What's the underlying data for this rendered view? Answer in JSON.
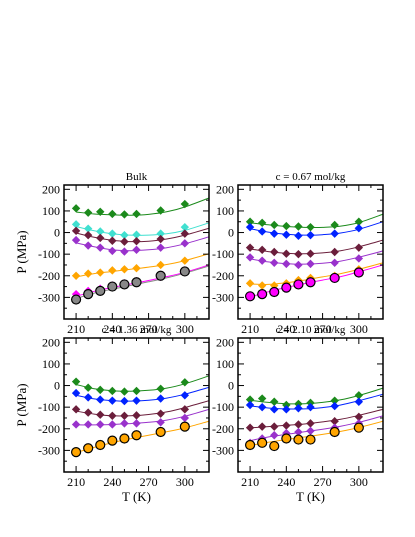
{
  "chart_data": [
    {
      "type": "line",
      "title": "Bulk",
      "xlabel": "",
      "ylabel": "P (MPa)",
      "xlim": [
        200,
        320
      ],
      "ylim": [
        -400,
        220
      ],
      "xticks": [
        210,
        240,
        270,
        300
      ],
      "yticks": [
        -300,
        -200,
        -100,
        0,
        100,
        200
      ],
      "series": [
        {
          "color": "#1b8a1b",
          "marker": "diamond",
          "x": [
            210,
            220,
            230,
            240,
            250,
            260,
            280,
            300
          ],
          "y": [
            112,
            92,
            96,
            86,
            84,
            86,
            102,
            132
          ],
          "curve_x": [
            210,
            225,
            240,
            255,
            270,
            285,
            300,
            320
          ],
          "curve_y": [
            95,
            86,
            82,
            80,
            84,
            96,
            118,
            160
          ]
        },
        {
          "color": "#40e0d0",
          "marker": "diamond",
          "x": [
            210,
            220,
            230,
            240,
            250,
            260,
            280,
            300
          ],
          "y": [
            38,
            18,
            5,
            -5,
            -12,
            -10,
            -5,
            25
          ],
          "curve_x": [
            210,
            225,
            240,
            255,
            270,
            285,
            300,
            320
          ],
          "curve_y": [
            28,
            8,
            -6,
            -12,
            -12,
            -6,
            10,
            45
          ]
        },
        {
          "color": "#6b1e3b",
          "marker": "diamond",
          "x": [
            210,
            220,
            230,
            240,
            250,
            260,
            280,
            300
          ],
          "y": [
            8,
            -12,
            -25,
            -38,
            -42,
            -40,
            -30,
            -5
          ],
          "curve_x": [
            210,
            225,
            240,
            255,
            270,
            285,
            300,
            320
          ],
          "curve_y": [
            -2,
            -22,
            -36,
            -42,
            -40,
            -30,
            -12,
            20
          ]
        },
        {
          "color": "#9932cc",
          "marker": "diamond",
          "x": [
            210,
            220,
            230,
            240,
            250,
            260,
            280,
            300
          ],
          "y": [
            -35,
            -60,
            -70,
            -85,
            -88,
            -80,
            -70,
            -50
          ],
          "curve_x": [
            210,
            225,
            240,
            255,
            270,
            285,
            300,
            320
          ],
          "curve_y": [
            -48,
            -66,
            -80,
            -84,
            -80,
            -70,
            -52,
            -20
          ]
        },
        {
          "color": "#ffa500",
          "marker": "diamond",
          "x": [
            210,
            220,
            230,
            240,
            250,
            260,
            280,
            300
          ],
          "y": [
            -200,
            -190,
            -185,
            -175,
            -170,
            -165,
            -150,
            -130
          ],
          "curve_x": [
            210,
            225,
            240,
            255,
            270,
            285,
            300,
            320
          ],
          "curve_y": [
            -205,
            -190,
            -180,
            -170,
            -160,
            -148,
            -130,
            -98
          ]
        },
        {
          "color": "#ff00ff",
          "marker": "diamond",
          "x": [
            210,
            220,
            230,
            240,
            250,
            260,
            280,
            300
          ],
          "y": [
            -285,
            -270,
            -260,
            -245,
            -235,
            -225,
            -205,
            -175
          ],
          "curve_x": [
            210,
            225,
            240,
            255,
            270,
            285,
            300,
            320
          ],
          "curve_y": [
            -295,
            -272,
            -254,
            -238,
            -222,
            -204,
            -184,
            -150
          ]
        },
        {
          "color": "#888888",
          "marker": "circle",
          "x": [
            210,
            220,
            230,
            240,
            250,
            260,
            280,
            300
          ],
          "y": [
            -310,
            -285,
            -270,
            -250,
            -240,
            -230,
            -200,
            -180
          ],
          "curve_x": [
            210,
            225,
            240,
            255,
            270,
            285,
            300,
            320
          ],
          "curve_y": [
            -305,
            -280,
            -262,
            -245,
            -228,
            -210,
            -188,
            -155
          ]
        }
      ]
    },
    {
      "type": "line",
      "title": "c = 0.67 mol/kg",
      "xlabel": "",
      "ylabel": "",
      "xlim": [
        200,
        320
      ],
      "ylim": [
        -400,
        220
      ],
      "xticks": [
        210,
        240,
        270,
        300
      ],
      "yticks": [
        -300,
        -200,
        -100,
        0,
        100,
        200
      ],
      "series": [
        {
          "color": "#1b8a1b",
          "marker": "diamond",
          "x": [
            210,
            220,
            230,
            240,
            250,
            260,
            280,
            300
          ],
          "y": [
            50,
            45,
            35,
            30,
            28,
            25,
            35,
            50
          ],
          "curve_x": [
            210,
            225,
            240,
            255,
            270,
            285,
            300,
            320
          ],
          "curve_y": [
            45,
            36,
            28,
            24,
            24,
            30,
            46,
            85
          ]
        },
        {
          "color": "#0022ff",
          "marker": "diamond",
          "x": [
            210,
            220,
            230,
            240,
            250,
            260,
            280,
            300
          ],
          "y": [
            25,
            5,
            -5,
            -10,
            -15,
            -12,
            -5,
            20
          ],
          "curve_x": [
            210,
            225,
            240,
            255,
            270,
            285,
            300,
            320
          ],
          "curve_y": [
            18,
            2,
            -8,
            -12,
            -10,
            -2,
            15,
            50
          ]
        },
        {
          "color": "#6b1e3b",
          "marker": "diamond",
          "x": [
            210,
            220,
            230,
            240,
            250,
            260,
            280,
            300
          ],
          "y": [
            -70,
            -80,
            -90,
            -98,
            -100,
            -98,
            -90,
            -70
          ],
          "curve_x": [
            210,
            225,
            240,
            255,
            270,
            285,
            300,
            320
          ],
          "curve_y": [
            -76,
            -88,
            -96,
            -98,
            -94,
            -84,
            -66,
            -35
          ]
        },
        {
          "color": "#9932cc",
          "marker": "diamond",
          "x": [
            210,
            220,
            230,
            240,
            250,
            260,
            280,
            300
          ],
          "y": [
            -115,
            -130,
            -140,
            -145,
            -150,
            -145,
            -140,
            -120
          ],
          "curve_x": [
            210,
            225,
            240,
            255,
            270,
            285,
            300,
            320
          ],
          "curve_y": [
            -122,
            -136,
            -144,
            -146,
            -142,
            -132,
            -114,
            -85
          ]
        },
        {
          "color": "#ffa500",
          "marker": "diamond",
          "x": [
            210,
            220,
            230,
            240,
            250,
            260,
            280,
            300
          ],
          "y": [
            -235,
            -245,
            -245,
            -235,
            -220,
            -210,
            -200,
            -170
          ],
          "curve_x": [
            210,
            225,
            240,
            255,
            270,
            285,
            300,
            320
          ],
          "curve_y": [
            -238,
            -240,
            -232,
            -220,
            -205,
            -190,
            -170,
            -140
          ]
        },
        {
          "color": "#ff00ff",
          "marker": "circle",
          "x": [
            210,
            220,
            230,
            240,
            250,
            260,
            280,
            300
          ],
          "y": [
            -295,
            -285,
            -275,
            -255,
            -240,
            -230,
            -210,
            -185
          ],
          "curve_x": [
            210,
            225,
            240,
            255,
            270,
            285,
            300,
            320
          ],
          "curve_y": [
            -298,
            -274,
            -254,
            -236,
            -220,
            -204,
            -182,
            -150
          ]
        }
      ]
    },
    {
      "type": "line",
      "title": "c = 1.36 mol/kg",
      "xlabel": "T (K)",
      "ylabel": "P (MPa)",
      "xlim": [
        200,
        320
      ],
      "ylim": [
        -400,
        220
      ],
      "xticks": [
        210,
        240,
        270,
        300
      ],
      "yticks": [
        -300,
        -200,
        -100,
        0,
        100,
        200
      ],
      "series": [
        {
          "color": "#1b8a1b",
          "marker": "diamond",
          "x": [
            210,
            220,
            230,
            240,
            250,
            260,
            280,
            300
          ],
          "y": [
            18,
            -10,
            -20,
            -25,
            -28,
            -25,
            -15,
            15
          ],
          "curve_x": [
            210,
            225,
            240,
            255,
            270,
            285,
            300,
            320
          ],
          "curve_y": [
            5,
            -15,
            -24,
            -26,
            -22,
            -12,
            8,
            45
          ]
        },
        {
          "color": "#0022ff",
          "marker": "diamond",
          "x": [
            210,
            220,
            230,
            240,
            250,
            260,
            280,
            300
          ],
          "y": [
            -35,
            -55,
            -65,
            -70,
            -72,
            -70,
            -60,
            -45
          ],
          "curve_x": [
            210,
            225,
            240,
            255,
            270,
            285,
            300,
            320
          ],
          "curve_y": [
            -45,
            -62,
            -70,
            -72,
            -68,
            -58,
            -40,
            -8
          ]
        },
        {
          "color": "#6b1e3b",
          "marker": "diamond",
          "x": [
            210,
            220,
            230,
            240,
            250,
            260,
            280,
            300
          ],
          "y": [
            -110,
            -125,
            -135,
            -140,
            -140,
            -138,
            -130,
            -110
          ],
          "curve_x": [
            210,
            225,
            240,
            255,
            270,
            285,
            300,
            320
          ],
          "curve_y": [
            -118,
            -132,
            -140,
            -140,
            -134,
            -122,
            -102,
            -70
          ]
        },
        {
          "color": "#9932cc",
          "marker": "diamond",
          "x": [
            210,
            220,
            230,
            240,
            250,
            260,
            280,
            300
          ],
          "y": [
            -180,
            -180,
            -180,
            -180,
            -175,
            -175,
            -170,
            -150
          ],
          "curve_x": [
            210,
            225,
            240,
            255,
            270,
            285,
            300,
            320
          ],
          "curve_y": [
            -182,
            -182,
            -180,
            -176,
            -170,
            -160,
            -142,
            -110
          ]
        },
        {
          "color": "#ffa500",
          "marker": "circle",
          "x": [
            210,
            220,
            230,
            240,
            250,
            260,
            280,
            300
          ],
          "y": [
            -308,
            -290,
            -275,
            -255,
            -245,
            -230,
            -215,
            -190
          ],
          "curve_x": [
            210,
            225,
            240,
            255,
            270,
            285,
            300,
            320
          ],
          "curve_y": [
            -310,
            -286,
            -264,
            -246,
            -230,
            -214,
            -196,
            -165
          ]
        }
      ]
    },
    {
      "type": "line",
      "title": "c = 2.10 mol/kg",
      "xlabel": "T (K)",
      "ylabel": "",
      "xlim": [
        200,
        320
      ],
      "ylim": [
        -400,
        220
      ],
      "xticks": [
        210,
        240,
        270,
        300
      ],
      "yticks": [
        -300,
        -200,
        -100,
        0,
        100,
        200
      ],
      "series": [
        {
          "color": "#1b8a1b",
          "marker": "diamond",
          "x": [
            210,
            220,
            230,
            240,
            250,
            260,
            280,
            300
          ],
          "y": [
            -65,
            -60,
            -75,
            -90,
            -85,
            -80,
            -70,
            -45
          ],
          "curve_x": [
            210,
            225,
            240,
            255,
            270,
            285,
            300,
            320
          ],
          "curve_y": [
            -68,
            -78,
            -84,
            -84,
            -78,
            -66,
            -46,
            -12
          ]
        },
        {
          "color": "#0022ff",
          "marker": "diamond",
          "x": [
            210,
            220,
            230,
            240,
            250,
            260,
            280,
            300
          ],
          "y": [
            -90,
            -100,
            -110,
            -110,
            -105,
            -100,
            -95,
            -75
          ],
          "curve_x": [
            210,
            225,
            240,
            255,
            270,
            285,
            300,
            320
          ],
          "curve_y": [
            -94,
            -104,
            -108,
            -108,
            -102,
            -90,
            -70,
            -40
          ]
        },
        {
          "color": "#6b1e3b",
          "marker": "diamond",
          "x": [
            210,
            220,
            230,
            240,
            250,
            260,
            280,
            300
          ],
          "y": [
            -195,
            -190,
            -190,
            -185,
            -180,
            -175,
            -165,
            -145
          ],
          "curve_x": [
            210,
            225,
            240,
            255,
            270,
            285,
            300,
            320
          ],
          "curve_y": [
            -196,
            -190,
            -184,
            -178,
            -168,
            -156,
            -138,
            -110
          ]
        },
        {
          "color": "#9932cc",
          "marker": "diamond",
          "x": [
            210,
            220,
            230,
            240,
            250,
            260,
            280,
            300
          ],
          "y": [
            -265,
            -245,
            -230,
            -220,
            -215,
            -210,
            -195,
            -175
          ],
          "curve_x": [
            210,
            225,
            240,
            255,
            270,
            285,
            300,
            320
          ],
          "curve_y": [
            -255,
            -238,
            -226,
            -214,
            -202,
            -188,
            -170,
            -140
          ]
        },
        {
          "color": "#ffa500",
          "marker": "circle",
          "x": [
            210,
            220,
            230,
            240,
            250,
            260,
            280,
            300
          ],
          "y": [
            -275,
            -265,
            -280,
            -245,
            -250,
            -250,
            -215,
            -195
          ],
          "curve_x": [
            210,
            225,
            240,
            255,
            270,
            285,
            300,
            320
          ],
          "curve_y": [
            -278,
            -262,
            -250,
            -238,
            -226,
            -212,
            -194,
            -165
          ]
        }
      ]
    }
  ]
}
